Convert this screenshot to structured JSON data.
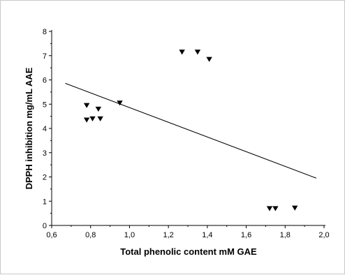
{
  "chart_data": {
    "type": "scatter",
    "xlabel": "Total phenolic content mM GAE",
    "ylabel": "DPPH inhibition mg/mL AAE",
    "xlim": [
      0.6,
      2.0
    ],
    "ylim": [
      0,
      8
    ],
    "x_ticks": [
      0.6,
      0.8,
      1.0,
      1.2,
      1.4,
      1.6,
      1.8,
      2.0
    ],
    "x_tick_labels": [
      "0,6",
      "0,8",
      "1,0",
      "1,2",
      "1,4",
      "1,6",
      "1,8",
      "2,0"
    ],
    "y_ticks": [
      0,
      1,
      2,
      3,
      4,
      5,
      6,
      7,
      8
    ],
    "y_tick_labels": [
      "0",
      "1",
      "2",
      "3",
      "4",
      "5",
      "6",
      "7",
      "8"
    ],
    "grid": false,
    "marker": "down-triangle",
    "marker_color": "#000000",
    "points": [
      {
        "x": 0.78,
        "y": 4.95
      },
      {
        "x": 0.78,
        "y": 4.35
      },
      {
        "x": 0.81,
        "y": 4.4
      },
      {
        "x": 0.84,
        "y": 4.8
      },
      {
        "x": 0.85,
        "y": 4.4
      },
      {
        "x": 0.95,
        "y": 5.05
      },
      {
        "x": 1.27,
        "y": 7.15
      },
      {
        "x": 1.35,
        "y": 7.15
      },
      {
        "x": 1.41,
        "y": 6.85
      },
      {
        "x": 1.72,
        "y": 0.7
      },
      {
        "x": 1.75,
        "y": 0.7
      },
      {
        "x": 1.85,
        "y": 0.72
      }
    ],
    "trendline": {
      "x": [
        0.67,
        1.96
      ],
      "y": [
        5.86,
        1.95
      ]
    }
  }
}
